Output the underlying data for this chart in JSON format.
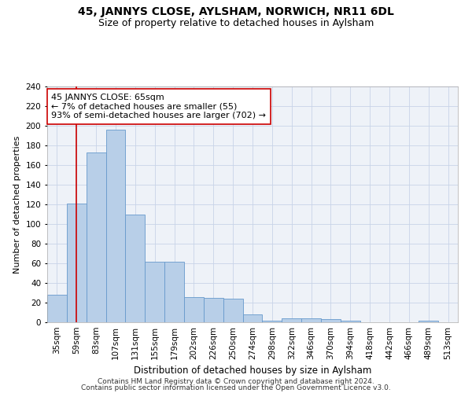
{
  "title": "45, JANNYS CLOSE, AYLSHAM, NORWICH, NR11 6DL",
  "subtitle": "Size of property relative to detached houses in Aylsham",
  "xlabel": "Distribution of detached houses by size in Aylsham",
  "ylabel": "Number of detached properties",
  "categories": [
    "35sqm",
    "59sqm",
    "83sqm",
    "107sqm",
    "131sqm",
    "155sqm",
    "179sqm",
    "202sqm",
    "226sqm",
    "250sqm",
    "274sqm",
    "298sqm",
    "322sqm",
    "346sqm",
    "370sqm",
    "394sqm",
    "418sqm",
    "442sqm",
    "466sqm",
    "489sqm",
    "513sqm"
  ],
  "values": [
    28,
    121,
    173,
    196,
    110,
    62,
    62,
    26,
    25,
    24,
    8,
    2,
    4,
    4,
    3,
    2,
    0,
    0,
    0,
    2,
    0
  ],
  "bar_color": "#b8cfe8",
  "bar_edge_color": "#6699cc",
  "vline_x": 1,
  "vline_color": "#cc0000",
  "annotation_text": "45 JANNYS CLOSE: 65sqm\n← 7% of detached houses are smaller (55)\n93% of semi-detached houses are larger (702) →",
  "annotation_box_color": "#ffffff",
  "annotation_box_edge": "#cc0000",
  "ylim": [
    0,
    240
  ],
  "yticks": [
    0,
    20,
    40,
    60,
    80,
    100,
    120,
    140,
    160,
    180,
    200,
    220,
    240
  ],
  "grid_color": "#c8d4e8",
  "background_color": "#eef2f8",
  "footer_line1": "Contains HM Land Registry data © Crown copyright and database right 2024.",
  "footer_line2": "Contains public sector information licensed under the Open Government Licence v3.0.",
  "title_fontsize": 10,
  "subtitle_fontsize": 9,
  "xlabel_fontsize": 8.5,
  "ylabel_fontsize": 8,
  "tick_fontsize": 7.5,
  "annotation_fontsize": 8,
  "footer_fontsize": 6.5
}
